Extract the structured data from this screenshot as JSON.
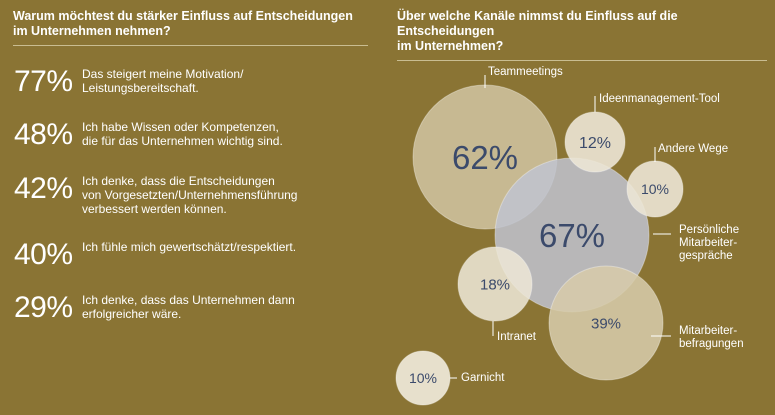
{
  "left": {
    "title_line1": "Warum möchtest du stärker Einfluss auf Entscheidungen",
    "title_line2": "im Unternehmen nehmen?",
    "reasons": [
      {
        "pct": "77%",
        "line1": "Das steigert meine Motivation/",
        "line2": "Leistungsbereitschaft.",
        "line3": ""
      },
      {
        "pct": "48%",
        "line1": "Ich habe Wissen oder Kompetenzen,",
        "line2": "die für das Unternehmen wichtig sind.",
        "line3": ""
      },
      {
        "pct": "42%",
        "line1": "Ich denke, dass die Entscheidungen",
        "line2": "von Vorgesetzten/Unternehmensführung",
        "line3": "verbessert werden können."
      },
      {
        "pct": "40%",
        "line1": "Ich fühle mich gewertschätzt/respektiert.",
        "line2": "",
        "line3": ""
      },
      {
        "pct": "29%",
        "line1": "Ich denke, dass das Unternehmen dann",
        "line2": "erfolgreicher wäre.",
        "line3": ""
      }
    ]
  },
  "right": {
    "title_line1": "Über welche Kanäle nimmst du Einfluss auf die Entscheidungen",
    "title_line2": "im Unternehmen?"
  },
  "colors": {
    "background": "#8a7434",
    "bubble_beige": "#d6cbaa",
    "bubble_light": "#ece6d5",
    "bubble_blue": "#bfc3d0",
    "value_text": "#3b4a6b"
  },
  "chart_data": {
    "type": "bubble",
    "title": "Über welche Kanäle nimmst du Einfluss auf die Entscheidungen im Unternehmen?",
    "series": [
      {
        "name": "Teammeetings",
        "value": 62,
        "label": "62%",
        "label_lines": [
          "Teammeetings"
        ]
      },
      {
        "name": "Ideenmanagement-Tool",
        "value": 12,
        "label": "12%",
        "label_lines": [
          "Ideenmanagement-Tool"
        ]
      },
      {
        "name": "Andere Wege",
        "value": 10,
        "label": "10%",
        "label_lines": [
          "Andere Wege"
        ]
      },
      {
        "name": "Persönliche Mitarbeitergespräche",
        "value": 67,
        "label": "67%",
        "label_lines": [
          "Persönliche",
          "Mitarbeiter-",
          "gespräche"
        ]
      },
      {
        "name": "Intranet",
        "value": 18,
        "label": "18%",
        "label_lines": [
          "Intranet"
        ]
      },
      {
        "name": "Mitarbeiterbefragungen",
        "value": 39,
        "label": "39%",
        "label_lines": [
          "Mitarbeiter-",
          "befragungen"
        ]
      },
      {
        "name": "Garnicht",
        "value": 10,
        "label": "10%",
        "label_lines": [
          "Garnicht"
        ]
      }
    ]
  }
}
